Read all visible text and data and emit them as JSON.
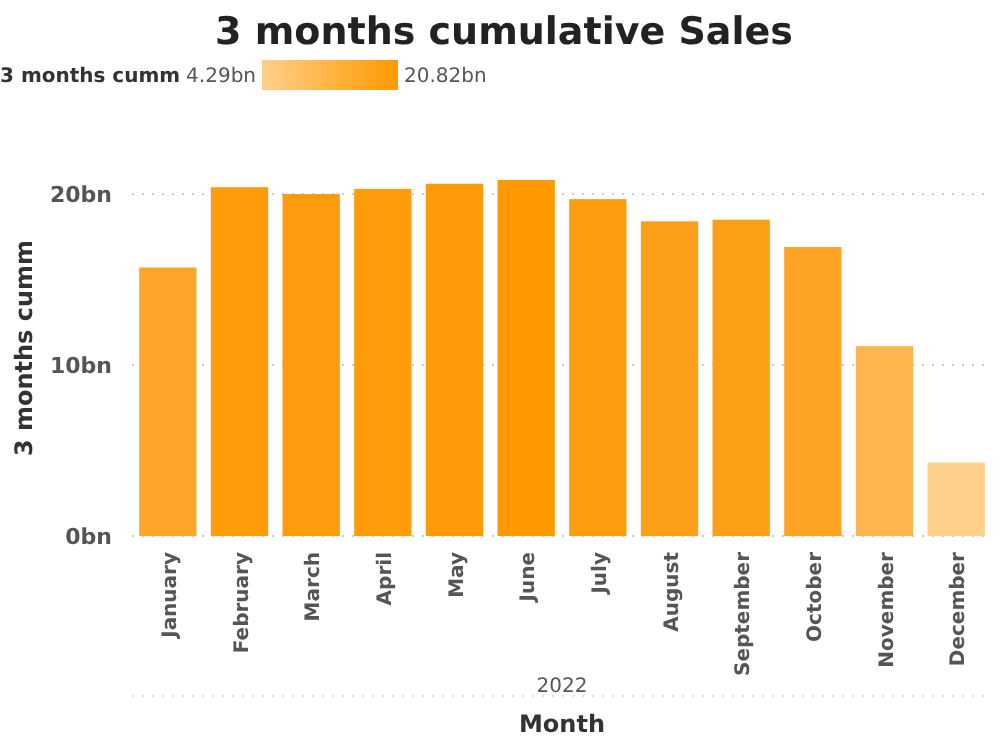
{
  "chart_data": {
    "type": "bar",
    "title": "3 months cumulative Sales",
    "categories": [
      "January",
      "February",
      "March",
      "April",
      "May",
      "June",
      "July",
      "August",
      "September",
      "October",
      "November",
      "December"
    ],
    "values": [
      15.7,
      20.4,
      20.0,
      20.3,
      20.6,
      20.82,
      19.7,
      18.4,
      18.5,
      16.9,
      11.1,
      4.29
    ],
    "colors": [
      "#fea52a",
      "#ff9c0a",
      "#ff9c0d",
      "#ff9c0b",
      "#ff9b08",
      "#ff9900",
      "#ff9d10",
      "#fe9f19",
      "#fe9f18",
      "#fea324",
      "#feb54f",
      "#ffd08a"
    ],
    "ylim": [
      0,
      20.82
    ],
    "yticks": [
      {
        "value": 0,
        "label": "0bn"
      },
      {
        "value": 10,
        "label": "10bn"
      },
      {
        "value": 20,
        "label": "20bn"
      }
    ],
    "xlabel": "Month",
    "ylabel": "3 months cumm",
    "grid": "y",
    "clabel": "3 months cumm",
    "annotations": [
      "2022",
      "4.29bn",
      "20.82bn"
    ]
  }
}
